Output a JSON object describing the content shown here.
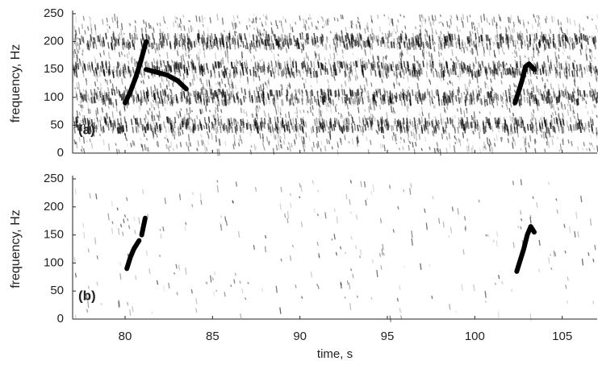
{
  "chart_data": [
    {
      "type": "spectrogram",
      "label": "(a)",
      "ylabel": "frequency, Hz",
      "xlim": [
        77,
        107
      ],
      "ylim": [
        0,
        250
      ],
      "xticks": [
        80,
        85,
        90,
        95,
        100,
        105
      ],
      "yticks": [
        0,
        50,
        100,
        150,
        200,
        250
      ],
      "harmonic_bands": [
        50,
        100,
        150,
        200
      ],
      "contours": [
        {
          "x": [
            80.0,
            80.3,
            80.6,
            80.9,
            81.2
          ],
          "values": [
            90,
            110,
            135,
            165,
            200
          ]
        },
        {
          "x": [
            81.2,
            81.8,
            82.4,
            83.0,
            83.5
          ],
          "values": [
            150,
            145,
            140,
            130,
            115
          ]
        },
        {
          "x": [
            102.3,
            102.5,
            102.7,
            102.9,
            103.1,
            103.4
          ],
          "values": [
            90,
            110,
            130,
            155,
            160,
            150
          ]
        }
      ]
    },
    {
      "type": "spectrogram",
      "label": "(b)",
      "ylabel": "frequency, Hz",
      "xlabel": "time, s",
      "xlim": [
        77,
        107
      ],
      "ylim": [
        0,
        250
      ],
      "xticks": [
        80,
        85,
        90,
        95,
        100,
        105
      ],
      "yticks": [
        0,
        50,
        100,
        150,
        200,
        250
      ],
      "contours": [
        {
          "x": [
            80.1,
            80.3,
            80.5,
            80.8
          ],
          "values": [
            90,
            110,
            125,
            140
          ]
        },
        {
          "x": [
            80.95,
            81.05,
            81.15
          ],
          "values": [
            150,
            165,
            180
          ]
        },
        {
          "x": [
            102.4,
            102.6,
            102.8,
            103.0,
            103.2,
            103.4
          ],
          "values": [
            85,
            105,
            125,
            150,
            165,
            155
          ]
        }
      ]
    }
  ]
}
